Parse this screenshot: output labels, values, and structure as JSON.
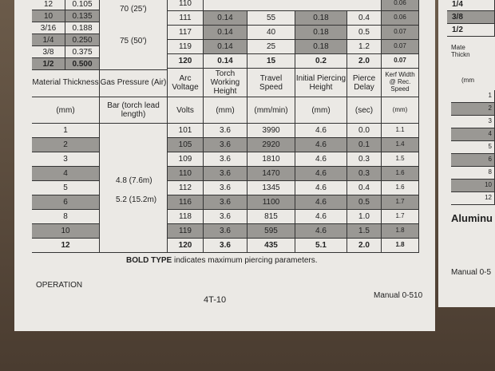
{
  "upper": {
    "left_rows": [
      [
        "12",
        "0.105"
      ],
      [
        "10",
        "0.135"
      ],
      [
        "3/16",
        "0.188"
      ],
      [
        "1/4",
        "0.250"
      ],
      [
        "3/8",
        "0.375"
      ],
      [
        "1/2",
        "0.500"
      ]
    ],
    "gas": [
      "70 (25')",
      "75 (50')"
    ],
    "right_rows": [
      [
        "110",
        "0.06"
      ],
      [
        "111",
        "0.14",
        "55",
        "0.18",
        "0.4",
        "0.06"
      ],
      [
        "117",
        "0.14",
        "40",
        "0.18",
        "0.5",
        "0.07"
      ],
      [
        "119",
        "0.14",
        "25",
        "0.18",
        "1.2",
        "0.07"
      ],
      [
        "120",
        "0.14",
        "15",
        "0.2",
        "2.0",
        "0.07"
      ]
    ]
  },
  "headers": [
    "Material Thickness",
    "Gas Pressure (Air)",
    "Arc Voltage",
    "Torch Working Height",
    "Travel Speed",
    "Initial Piercing Height",
    "Pierce Delay",
    "Kerf Width @ Rec. Speed"
  ],
  "units": [
    "(mm)",
    "Bar (torch lead length)",
    "Volts",
    "(mm)",
    "(mm/min)",
    "(mm)",
    "(sec)",
    "(mm)"
  ],
  "thickness": [
    "1",
    "2",
    "3",
    "4",
    "5",
    "6",
    "8",
    "10",
    "12"
  ],
  "gas_pressure": [
    "4.8 (7.6m)",
    "5.2 (15.2m)"
  ],
  "rows": [
    [
      "101",
      "3.6",
      "3990",
      "4.6",
      "0.0",
      "1.1"
    ],
    [
      "105",
      "3.6",
      "2920",
      "4.6",
      "0.1",
      "1.4"
    ],
    [
      "109",
      "3.6",
      "1810",
      "4.6",
      "0.3",
      "1.5"
    ],
    [
      "110",
      "3.6",
      "1470",
      "4.6",
      "0.3",
      "1.6"
    ],
    [
      "112",
      "3.6",
      "1345",
      "4.6",
      "0.4",
      "1.6"
    ],
    [
      "116",
      "3.6",
      "1100",
      "4.6",
      "0.5",
      "1.7"
    ],
    [
      "118",
      "3.6",
      "815",
      "4.6",
      "1.0",
      "1.7"
    ],
    [
      "119",
      "3.6",
      "595",
      "4.6",
      "1.5",
      "1.8"
    ],
    [
      "120",
      "3.6",
      "435",
      "5.1",
      "2.0",
      "1.8"
    ]
  ],
  "note_bold": "BOLD TYPE",
  "note": "indicates maximum piercing parameters.",
  "footer": {
    "section": "OPERATION",
    "page": "4T-10",
    "manual": "Manual 0-510"
  },
  "right_page": {
    "top_rows": [
      "1/4",
      "3/8",
      "1/2"
    ],
    "header": "Mate Thickn",
    "unit": "(mm",
    "thickness": [
      "1",
      "2",
      "3",
      "4",
      "5",
      "6",
      "8",
      "10",
      "12"
    ],
    "heading": "Aluminu",
    "manual": "Manual 0-5"
  }
}
